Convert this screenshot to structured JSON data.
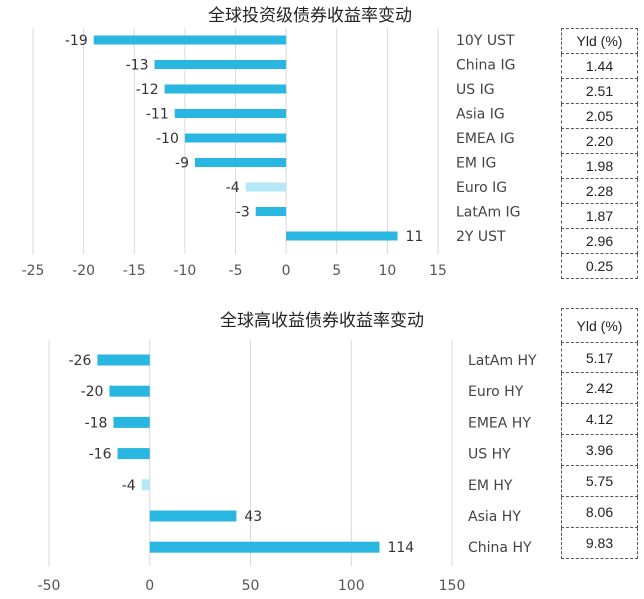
{
  "chart_data": [
    {
      "type": "bar",
      "orientation": "horizontal",
      "title": "全球投资级债券收益率变动",
      "categories": [
        "10Y UST",
        "China IG",
        "US IG",
        "Asia IG",
        "EMEA IG",
        "EM IG",
        "Euro IG",
        "LatAm IG",
        "2Y UST"
      ],
      "values": [
        -19,
        -13,
        -12,
        -11,
        -10,
        -9,
        -4,
        -3,
        11
      ],
      "xlim": [
        -25,
        15
      ],
      "xticks": [
        -25,
        -20,
        -15,
        -10,
        -5,
        0,
        5,
        10,
        15
      ],
      "grid": "vertical",
      "colors": {
        "bar": "#29b6e0",
        "highlight": "#b5e8f7"
      },
      "highlight_index": 6
    },
    {
      "type": "bar",
      "orientation": "horizontal",
      "title": "全球高收益债券收益率变动",
      "categories": [
        "LatAm HY",
        "Euro HY",
        "EMEA HY",
        "US HY",
        "EM HY",
        "Asia HY",
        "China HY"
      ],
      "values": [
        -26,
        -20,
        -18,
        -16,
        -4,
        43,
        114
      ],
      "xlim": [
        -50,
        150
      ],
      "xticks": [
        -50,
        0,
        50,
        100,
        150
      ],
      "grid": "vertical",
      "colors": {
        "bar": "#29b6e0",
        "highlight": "#b5e8f7"
      },
      "highlight_index": 4
    }
  ],
  "yield_tables": [
    {
      "header": "Yld (%)",
      "values": [
        "1.44",
        "2.51",
        "2.05",
        "2.20",
        "1.98",
        "2.28",
        "1.87",
        "2.96",
        "0.25"
      ]
    },
    {
      "header": "Yld (%)",
      "values": [
        "5.17",
        "2.42",
        "4.12",
        "3.96",
        "5.75",
        "8.06",
        "9.83"
      ]
    }
  ]
}
